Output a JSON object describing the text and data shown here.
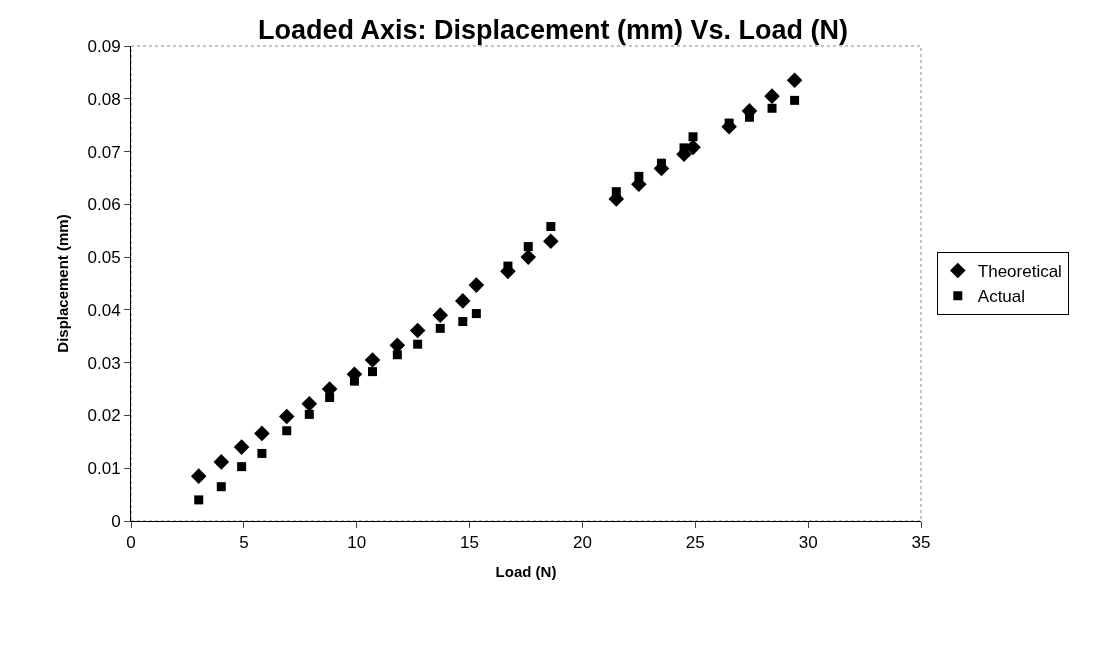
{
  "chart_data": {
    "type": "scatter",
    "title": "Loaded Axis: Displacement (mm) Vs. Load (N)",
    "xlabel": "Load (N)",
    "ylabel": "Displacement (mm)",
    "xlim": [
      0,
      35
    ],
    "xticks": [
      0,
      5,
      10,
      15,
      20,
      25,
      30,
      35
    ],
    "ylim": [
      0,
      0.09
    ],
    "yticks": [
      0,
      0.01,
      0.02,
      0.03,
      0.04,
      0.05,
      0.06,
      0.07,
      0.08,
      0.09
    ],
    "grid": false,
    "legend": "right",
    "series": [
      {
        "name": "Theoretical",
        "color": "#000000",
        "marker": "diamond",
        "x": [
          3,
          4,
          4.9,
          5.8,
          6.9,
          7.9,
          8.8,
          9.9,
          10.7,
          11.8,
          12.7,
          13.7,
          14.7,
          15.3,
          16.7,
          17.6,
          18.6,
          21.5,
          22.5,
          23.5,
          24.5,
          24.9,
          26.5,
          27.4,
          28.4,
          29.4
        ],
        "values": [
          0.0085,
          0.0112,
          0.014,
          0.0166,
          0.0198,
          0.0222,
          0.025,
          0.0278,
          0.0305,
          0.0333,
          0.0361,
          0.039,
          0.0417,
          0.0447,
          0.0473,
          0.05,
          0.053,
          0.061,
          0.0638,
          0.0668,
          0.0695,
          0.0708,
          0.0747,
          0.0777,
          0.0805,
          0.0835
        ]
      },
      {
        "name": "Actual",
        "color": "#000000",
        "marker": "square",
        "x": [
          3,
          4,
          4.9,
          5.8,
          6.9,
          7.9,
          8.8,
          9.9,
          10.7,
          11.8,
          12.7,
          13.7,
          14.7,
          15.3,
          16.7,
          17.6,
          18.6,
          21.5,
          22.5,
          23.5,
          24.5,
          24.9,
          26.5,
          27.4,
          28.4,
          29.4
        ],
        "values": [
          0.004,
          0.0065,
          0.0103,
          0.0128,
          0.0171,
          0.0202,
          0.0234,
          0.0265,
          0.0283,
          0.0315,
          0.0335,
          0.0365,
          0.0378,
          0.0393,
          0.0483,
          0.052,
          0.0558,
          0.0624,
          0.0653,
          0.0678,
          0.0707,
          0.0728,
          0.0754,
          0.0765,
          0.0782,
          0.0797
        ]
      }
    ]
  }
}
